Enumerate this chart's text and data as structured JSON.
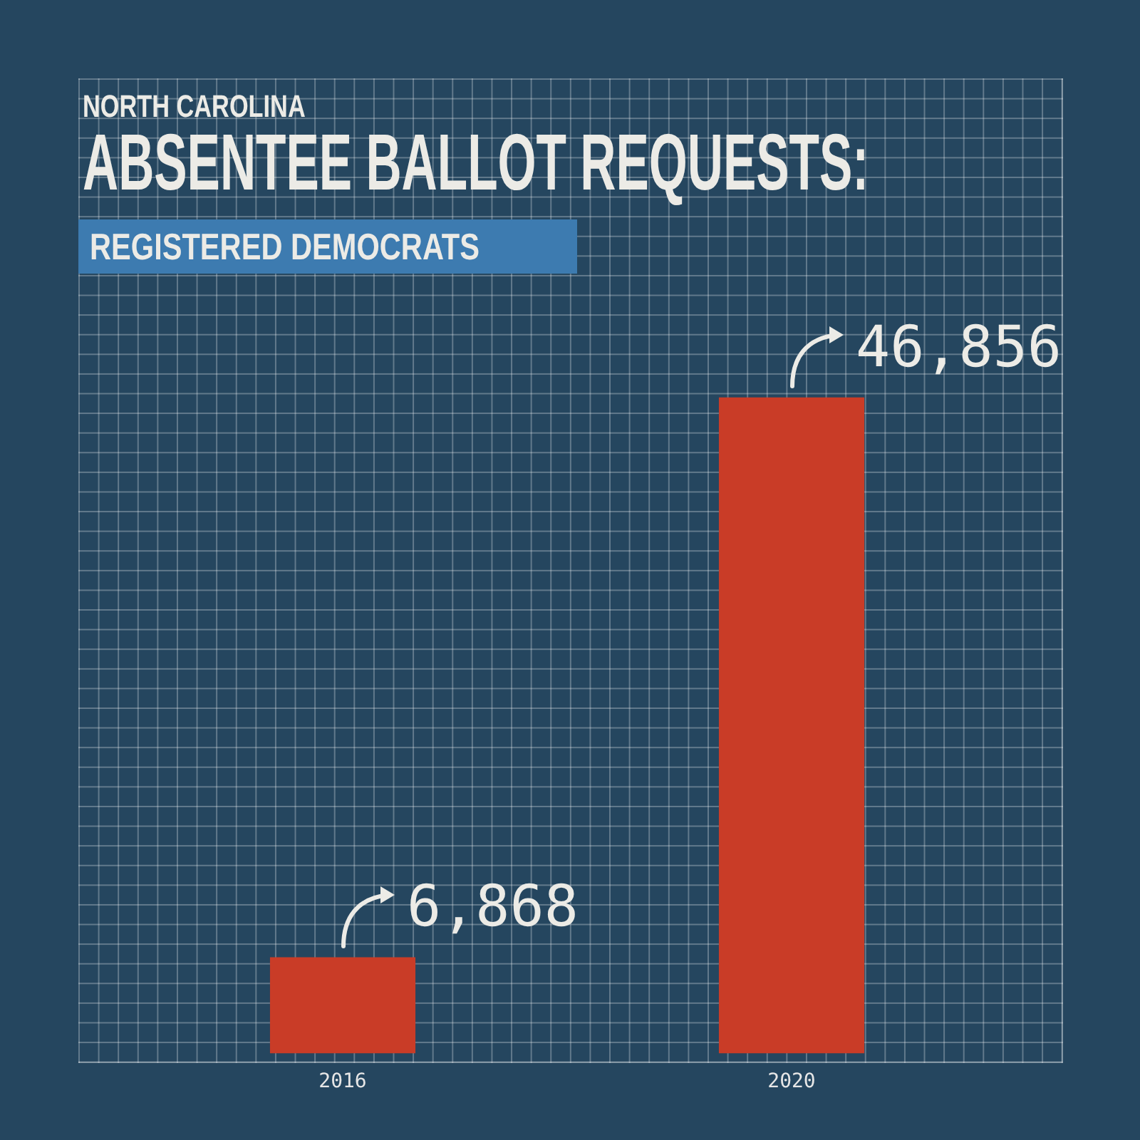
{
  "chart_data": {
    "type": "bar",
    "title": "ABSENTEE BALLOT REQUESTS:",
    "subtitle": "REGISTERED DEMOCRATS",
    "annotations": [
      "NORTH CAROLINA"
    ],
    "categories": [
      "2016",
      "2020"
    ],
    "values": [
      6868,
      46856
    ],
    "value_labels": [
      "6,868",
      "46,856"
    ],
    "color": "#c93c27"
  }
}
